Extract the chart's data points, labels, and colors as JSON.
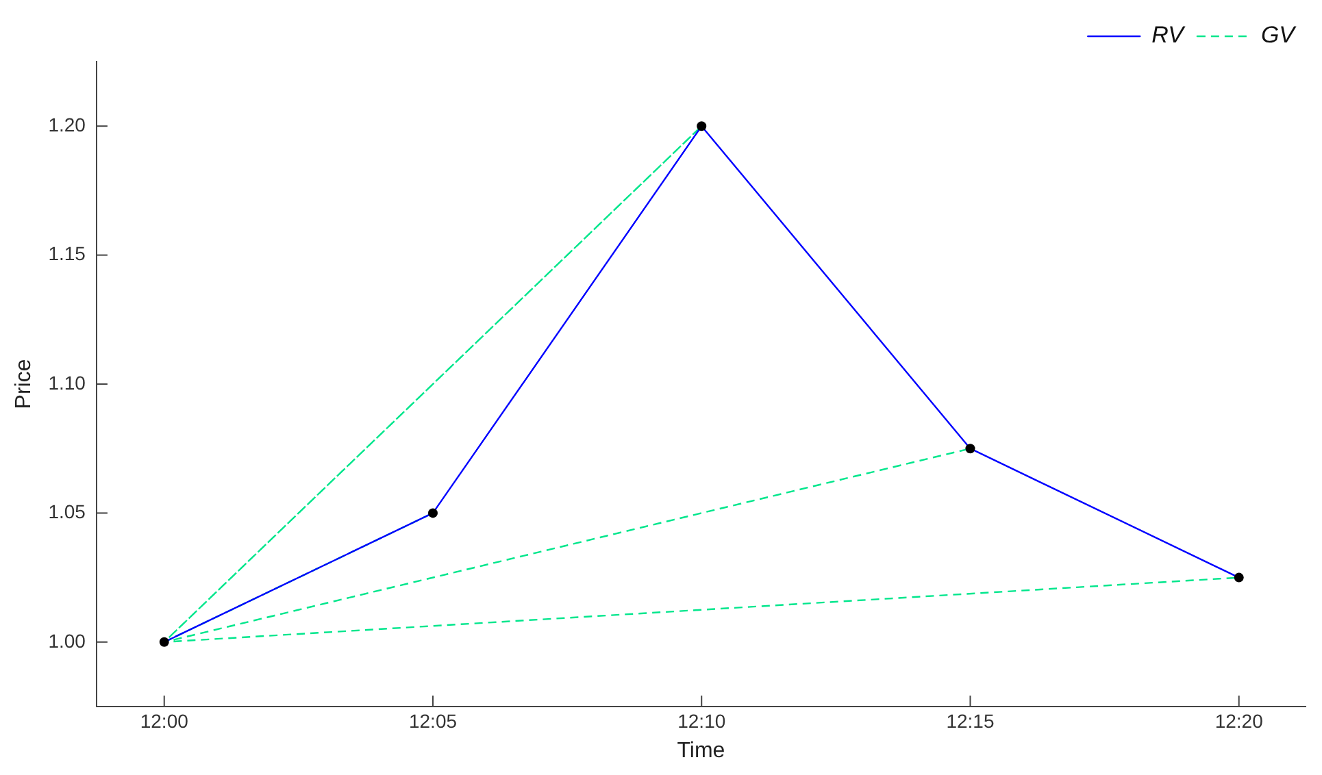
{
  "chart_data": {
    "type": "line",
    "xlabel": "Time",
    "ylabel": "Price",
    "xlim": [
      11.979,
      12.354
    ],
    "ylim": [
      0.975,
      1.225
    ],
    "xticks": [
      {
        "value": 12,
        "label": "12:00"
      },
      {
        "value": 12.083333,
        "label": "12:05"
      },
      {
        "value": 12.166667,
        "label": "12:10"
      },
      {
        "value": 12.25,
        "label": "12:15"
      },
      {
        "value": 12.333333,
        "label": "12:20"
      }
    ],
    "yticks": [
      {
        "value": 1,
        "label": "1.00"
      },
      {
        "value": 1.05,
        "label": "1.05"
      },
      {
        "value": 1.1,
        "label": "1.10"
      },
      {
        "value": 1.15,
        "label": "1.15"
      },
      {
        "value": 1.2,
        "label": "1.20"
      }
    ],
    "grid": false,
    "legend": "top right",
    "series": [
      {
        "name": "RV",
        "color": "#0000ff",
        "line_style": "solid",
        "marker": "none",
        "x": [
          12,
          12.083333,
          12.166667,
          12.25,
          12.333333
        ],
        "values": [
          1,
          1.05,
          1.2,
          1.075,
          1.025
        ]
      },
      {
        "name": "GV",
        "color": "#00e68c",
        "line_style": "dashed",
        "marker": "none",
        "x": [
          12,
          12.083333,
          12,
          12.166667,
          12,
          12.25,
          12,
          12.333333
        ],
        "values": [
          1,
          1.05,
          1,
          1.2,
          1,
          1.075,
          1,
          1.025
        ]
      },
      {
        "type": "scatter",
        "color": "#000000",
        "marker": "circle",
        "x": [
          12,
          12.083333,
          12.166667,
          12.25,
          12.333333
        ],
        "values": [
          1,
          1.05,
          1.2,
          1.075,
          1.025
        ]
      }
    ]
  }
}
